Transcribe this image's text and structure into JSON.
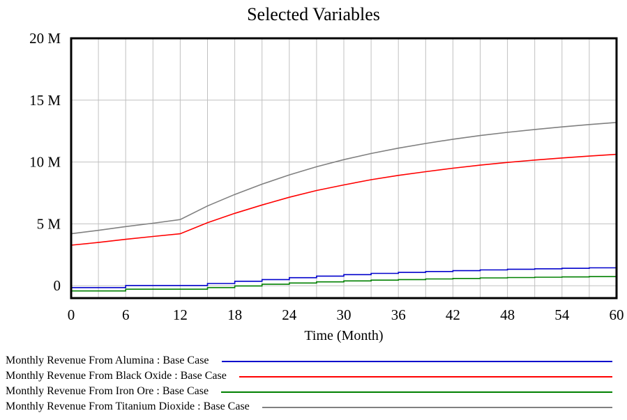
{
  "chart_data": {
    "type": "line",
    "title": "Selected Variables",
    "xlabel": "Time (Month)",
    "ylabel": "",
    "xlim": [
      0,
      60
    ],
    "ylim": [
      -1000000,
      20000000
    ],
    "x_ticks": [
      "0",
      "6",
      "12",
      "18",
      "24",
      "30",
      "36",
      "42",
      "48",
      "54",
      "60"
    ],
    "y_ticks": [
      {
        "value": 0,
        "label": "0"
      },
      {
        "value": 5000000,
        "label": "5 M"
      },
      {
        "value": 10000000,
        "label": "10 M"
      },
      {
        "value": 15000000,
        "label": "15 M"
      },
      {
        "value": 20000000,
        "label": "20 M"
      }
    ],
    "grid": true,
    "legend_position": "bottom",
    "x": [
      0,
      3,
      6,
      9,
      12,
      15,
      18,
      21,
      24,
      27,
      30,
      33,
      36,
      39,
      42,
      45,
      48,
      51,
      54,
      57,
      60
    ],
    "series": [
      {
        "name": "Monthly Revenue From Alumina : Base Case",
        "color": "#0000cc",
        "step": true,
        "values": [
          -150000,
          -150000,
          20000,
          20000,
          20000,
          180000,
          360000,
          500000,
          650000,
          780000,
          900000,
          1000000,
          1080000,
          1150000,
          1220000,
          1280000,
          1330000,
          1370000,
          1410000,
          1450000,
          1500000
        ]
      },
      {
        "name": "Monthly Revenue From Black Oxide : Base Case",
        "color": "#ff0000",
        "step": false,
        "values": [
          3280000,
          3500000,
          3750000,
          3980000,
          4200000,
          5100000,
          5850000,
          6530000,
          7150000,
          7700000,
          8150000,
          8570000,
          8920000,
          9220000,
          9500000,
          9750000,
          9970000,
          10160000,
          10330000,
          10480000,
          10620000
        ]
      },
      {
        "name": "Monthly Revenue From Iron Ore : Base Case",
        "color": "#008000",
        "step": true,
        "values": [
          -420000,
          -420000,
          -280000,
          -280000,
          -280000,
          -150000,
          -20000,
          120000,
          220000,
          310000,
          390000,
          450000,
          500000,
          550000,
          590000,
          630000,
          660000,
          690000,
          710000,
          740000,
          860000
        ]
      },
      {
        "name": "Monthly Revenue From Titanium Dioxide : Base Case",
        "color": "#808080",
        "step": false,
        "values": [
          4200000,
          4480000,
          4780000,
          5050000,
          5350000,
          6450000,
          7380000,
          8210000,
          8960000,
          9620000,
          10190000,
          10690000,
          11120000,
          11500000,
          11840000,
          12140000,
          12400000,
          12630000,
          12840000,
          13030000,
          13200000
        ]
      }
    ]
  }
}
